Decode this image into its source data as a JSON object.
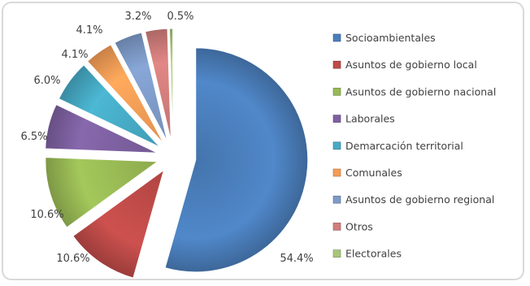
{
  "chart_data": {
    "type": "pie",
    "exploded": true,
    "legend_position": "right",
    "labels_format": "percent",
    "slices": [
      {
        "name": "Socioambientales",
        "value": 54.4,
        "label": "54.4%",
        "color": "#4a7ebb"
      },
      {
        "name": "Asuntos de gobierno local",
        "value": 10.6,
        "label": "10.6%",
        "color": "#be4b48"
      },
      {
        "name": "Asuntos de gobierno nacional",
        "value": 10.6,
        "label": "10.6%",
        "color": "#98b954"
      },
      {
        "name": "Laborales",
        "value": 6.5,
        "label": "6.5%",
        "color": "#7d60a0"
      },
      {
        "name": "Demarcación territorial",
        "value": 6.0,
        "label": "6.0%",
        "color": "#46aac4"
      },
      {
        "name": "Comunales",
        "value": 4.1,
        "label": "4.1%",
        "color": "#f59d56"
      },
      {
        "name": "Asuntos de gobierno regional",
        "value": 4.1,
        "label": "4.1%",
        "color": "#7e9bc8"
      },
      {
        "name": "Otros",
        "value": 3.2,
        "label": "3.2%",
        "color": "#d17d7b"
      },
      {
        "name": "Electorales",
        "value": 0.5,
        "label": "0.5%",
        "color": "#a8c679"
      }
    ]
  }
}
